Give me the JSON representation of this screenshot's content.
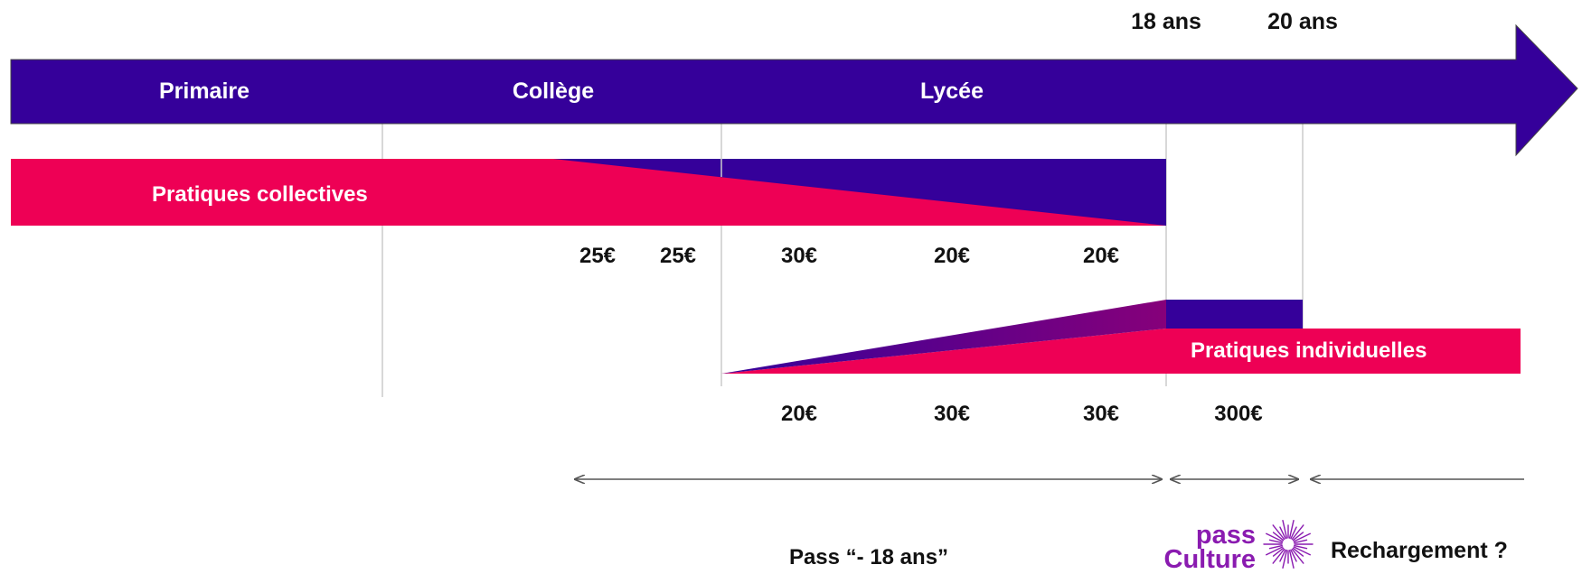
{
  "ages": {
    "age_18": "18 ans",
    "age_20": "20 ans"
  },
  "stages": {
    "primaire": "Primaire",
    "college": "Collège",
    "lycee": "Lycée"
  },
  "collective": {
    "label": "Pratiques collectives",
    "amounts": [
      "25€",
      "25€",
      "30€",
      "20€",
      "20€"
    ]
  },
  "individual": {
    "label": "Pratiques individuelles",
    "amounts": [
      "20€",
      "30€",
      "30€",
      "300€"
    ]
  },
  "footer": {
    "pass_minus18": "Pass “- 18 ans”",
    "logo_word1": "pass",
    "logo_word2": "Culture",
    "recharge": "Rechargement ?"
  },
  "colors": {
    "indigo": "#35009a",
    "pink": "#ee0055",
    "logo_purple": "#8a1bb0",
    "grid": "#cccccc",
    "arrow": "#555555"
  }
}
